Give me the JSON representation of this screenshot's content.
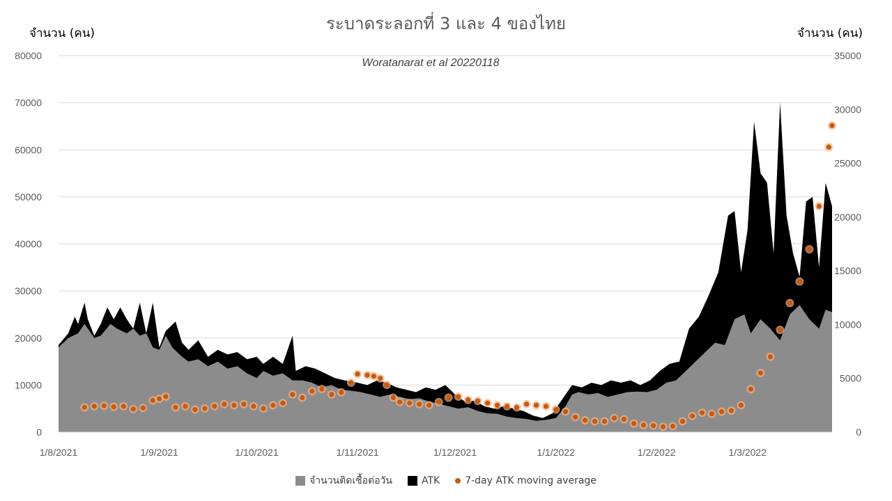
{
  "chart_data": {
    "type": "area",
    "title": "ระบาดระลอกที่ 3 และ 4 ของไทย",
    "subtitle": "Woratanarat et al 20220118",
    "ylabel_left": "จำนวน (คน)",
    "ylabel_right": "จำนวน (คน)",
    "x_tick_labels": [
      "1/8/2021",
      "1/9/2021",
      "1/10/2021",
      "1/11/2021",
      "1/12/2021",
      "1/1/2022",
      "1/2/2022",
      "1/3/2022"
    ],
    "x_range": [
      "2021-08-01",
      "2022-03-27"
    ],
    "y_left": {
      "min": 0,
      "max": 80000,
      "ticks": [
        0,
        10000,
        20000,
        30000,
        40000,
        50000,
        60000,
        70000,
        80000
      ]
    },
    "y_right": {
      "min": 0,
      "max": 35000,
      "ticks": [
        0,
        5000,
        10000,
        15000,
        20000,
        25000,
        30000,
        35000
      ]
    },
    "grid": true,
    "legend_position": "bottom",
    "colors": {
      "cases": "#8c8c8c",
      "atk": "#000000",
      "ma": "#c55a11",
      "ma_glow": "#f4b183"
    },
    "series": [
      {
        "name": "จำนวนติดเชื้อต่อวัน",
        "axis": "left",
        "points": [
          [
            "2021-08-01",
            18000
          ],
          [
            "2021-08-04",
            20000
          ],
          [
            "2021-08-07",
            21000
          ],
          [
            "2021-08-09",
            23000
          ],
          [
            "2021-08-10",
            22000
          ],
          [
            "2021-08-12",
            20000
          ],
          [
            "2021-08-14",
            20500
          ],
          [
            "2021-08-17",
            23000
          ],
          [
            "2021-08-19",
            22000
          ],
          [
            "2021-08-22",
            21000
          ],
          [
            "2021-08-24",
            22000
          ],
          [
            "2021-08-26",
            20500
          ],
          [
            "2021-08-28",
            21000
          ],
          [
            "2021-08-30",
            18000
          ],
          [
            "2021-09-01",
            17500
          ],
          [
            "2021-09-03",
            20500
          ],
          [
            "2021-09-05",
            18000
          ],
          [
            "2021-09-08",
            16000
          ],
          [
            "2021-09-10",
            15000
          ],
          [
            "2021-09-13",
            15500
          ],
          [
            "2021-09-16",
            14000
          ],
          [
            "2021-09-19",
            15000
          ],
          [
            "2021-09-22",
            13500
          ],
          [
            "2021-09-25",
            14000
          ],
          [
            "2021-09-28",
            12500
          ],
          [
            "2021-10-01",
            11500
          ],
          [
            "2021-10-03",
            13000
          ],
          [
            "2021-10-06",
            12000
          ],
          [
            "2021-10-09",
            12500
          ],
          [
            "2021-10-12",
            11000
          ],
          [
            "2021-10-15",
            11000
          ],
          [
            "2021-10-18",
            10500
          ],
          [
            "2021-10-21",
            9500
          ],
          [
            "2021-10-24",
            10000
          ],
          [
            "2021-10-27",
            9000
          ],
          [
            "2021-10-30",
            8800
          ],
          [
            "2021-11-02",
            8500
          ],
          [
            "2021-11-05",
            8000
          ],
          [
            "2021-11-08",
            7500
          ],
          [
            "2021-11-11",
            8000
          ],
          [
            "2021-11-14",
            7500
          ],
          [
            "2021-11-17",
            7000
          ],
          [
            "2021-11-20",
            7200
          ],
          [
            "2021-11-23",
            6500
          ],
          [
            "2021-11-26",
            6000
          ],
          [
            "2021-11-29",
            5500
          ],
          [
            "2021-12-02",
            5000
          ],
          [
            "2021-12-05",
            5300
          ],
          [
            "2021-12-08",
            4500
          ],
          [
            "2021-12-11",
            4000
          ],
          [
            "2021-12-14",
            3900
          ],
          [
            "2021-12-17",
            3300
          ],
          [
            "2021-12-20",
            3000
          ],
          [
            "2021-12-23",
            2800
          ],
          [
            "2021-12-26",
            2400
          ],
          [
            "2021-12-29",
            2600
          ],
          [
            "2022-01-01",
            3000
          ],
          [
            "2022-01-04",
            5500
          ],
          [
            "2022-01-06",
            8000
          ],
          [
            "2022-01-08",
            8500
          ],
          [
            "2022-01-11",
            8000
          ],
          [
            "2022-01-14",
            8300
          ],
          [
            "2022-01-17",
            7500
          ],
          [
            "2022-01-20",
            8000
          ],
          [
            "2022-01-23",
            8500
          ],
          [
            "2022-01-26",
            8600
          ],
          [
            "2022-01-29",
            8500
          ],
          [
            "2022-02-01",
            9000
          ],
          [
            "2022-02-04",
            10500
          ],
          [
            "2022-02-07",
            11000
          ],
          [
            "2022-02-10",
            13000
          ],
          [
            "2022-02-13",
            15000
          ],
          [
            "2022-02-16",
            17000
          ],
          [
            "2022-02-19",
            19000
          ],
          [
            "2022-02-22",
            18500
          ],
          [
            "2022-02-25",
            24000
          ],
          [
            "2022-02-28",
            25000
          ],
          [
            "2022-03-02",
            21000
          ],
          [
            "2022-03-05",
            24000
          ],
          [
            "2022-03-08",
            22000
          ],
          [
            "2022-03-11",
            19500
          ],
          [
            "2022-03-14",
            25000
          ],
          [
            "2022-03-17",
            27000
          ],
          [
            "2022-03-20",
            24000
          ],
          [
            "2022-03-23",
            22000
          ],
          [
            "2022-03-25",
            26000
          ],
          [
            "2022-03-27",
            25500
          ]
        ]
      },
      {
        "name": "ATK",
        "axis": "left",
        "points": [
          [
            "2021-08-01",
            18500
          ],
          [
            "2021-08-04",
            21000
          ],
          [
            "2021-08-06",
            24500
          ],
          [
            "2021-08-07",
            23000
          ],
          [
            "2021-08-09",
            27500
          ],
          [
            "2021-08-10",
            24000
          ],
          [
            "2021-08-12",
            20500
          ],
          [
            "2021-08-14",
            23000
          ],
          [
            "2021-08-16",
            26500
          ],
          [
            "2021-08-18",
            24000
          ],
          [
            "2021-08-20",
            26500
          ],
          [
            "2021-08-22",
            24000
          ],
          [
            "2021-08-24",
            22000
          ],
          [
            "2021-08-26",
            27500
          ],
          [
            "2021-08-28",
            21000
          ],
          [
            "2021-08-30",
            27500
          ],
          [
            "2021-09-01",
            18000
          ],
          [
            "2021-09-03",
            21500
          ],
          [
            "2021-09-06",
            23500
          ],
          [
            "2021-09-08",
            19000
          ],
          [
            "2021-09-10",
            17500
          ],
          [
            "2021-09-13",
            19500
          ],
          [
            "2021-09-16",
            16000
          ],
          [
            "2021-09-19",
            17500
          ],
          [
            "2021-09-22",
            16500
          ],
          [
            "2021-09-25",
            17000
          ],
          [
            "2021-09-28",
            15500
          ],
          [
            "2021-10-01",
            16000
          ],
          [
            "2021-10-03",
            14500
          ],
          [
            "2021-10-06",
            16000
          ],
          [
            "2021-10-09",
            14500
          ],
          [
            "2021-10-12",
            20500
          ],
          [
            "2021-10-13",
            13000
          ],
          [
            "2021-10-16",
            14000
          ],
          [
            "2021-10-19",
            13500
          ],
          [
            "2021-10-22",
            12500
          ],
          [
            "2021-10-25",
            11500
          ],
          [
            "2021-10-28",
            11000
          ],
          [
            "2021-11-01",
            10500
          ],
          [
            "2021-11-04",
            10000
          ],
          [
            "2021-11-07",
            11000
          ],
          [
            "2021-11-10",
            10500
          ],
          [
            "2021-11-13",
            9500
          ],
          [
            "2021-11-16",
            9000
          ],
          [
            "2021-11-19",
            8500
          ],
          [
            "2021-11-22",
            9500
          ],
          [
            "2021-11-25",
            9000
          ],
          [
            "2021-11-28",
            10000
          ],
          [
            "2021-12-01",
            8000
          ],
          [
            "2021-12-04",
            6500
          ],
          [
            "2021-12-07",
            6700
          ],
          [
            "2021-12-10",
            5500
          ],
          [
            "2021-12-13",
            5000
          ],
          [
            "2021-12-16",
            5500
          ],
          [
            "2021-12-19",
            5000
          ],
          [
            "2021-12-22",
            4500
          ],
          [
            "2021-12-25",
            3500
          ],
          [
            "2021-12-28",
            3000
          ],
          [
            "2021-12-31",
            4000
          ],
          [
            "2022-01-03",
            7000
          ],
          [
            "2022-01-06",
            10000
          ],
          [
            "2022-01-09",
            9500
          ],
          [
            "2022-01-12",
            10500
          ],
          [
            "2022-01-15",
            10000
          ],
          [
            "2022-01-18",
            11000
          ],
          [
            "2022-01-21",
            10500
          ],
          [
            "2022-01-24",
            11000
          ],
          [
            "2022-01-27",
            10000
          ],
          [
            "2022-01-30",
            11000
          ],
          [
            "2022-02-02",
            13000
          ],
          [
            "2022-02-05",
            14500
          ],
          [
            "2022-02-08",
            15000
          ],
          [
            "2022-02-11",
            22000
          ],
          [
            "2022-02-14",
            24500
          ],
          [
            "2022-02-17",
            29000
          ],
          [
            "2022-02-20",
            34000
          ],
          [
            "2022-02-23",
            46000
          ],
          [
            "2022-02-25",
            47000
          ],
          [
            "2022-02-27",
            34000
          ],
          [
            "2022-03-01",
            43000
          ],
          [
            "2022-03-03",
            66000
          ],
          [
            "2022-03-05",
            55000
          ],
          [
            "2022-03-07",
            53000
          ],
          [
            "2022-03-09",
            38000
          ],
          [
            "2022-03-11",
            70000
          ],
          [
            "2022-03-13",
            46000
          ],
          [
            "2022-03-15",
            38000
          ],
          [
            "2022-03-17",
            33000
          ],
          [
            "2022-03-19",
            49000
          ],
          [
            "2022-03-21",
            50000
          ],
          [
            "2022-03-23",
            35000
          ],
          [
            "2022-03-25",
            53000
          ],
          [
            "2022-03-27",
            48000
          ]
        ]
      },
      {
        "name": "7-day ATK moving average",
        "axis": "right",
        "points": [
          [
            "2021-08-09",
            2300
          ],
          [
            "2021-08-12",
            2400
          ],
          [
            "2021-08-15",
            2450
          ],
          [
            "2021-08-18",
            2350
          ],
          [
            "2021-08-21",
            2400
          ],
          [
            "2021-08-24",
            2150
          ],
          [
            "2021-08-27",
            2250
          ],
          [
            "2021-08-30",
            2950
          ],
          [
            "2021-09-01",
            3100
          ],
          [
            "2021-09-03",
            3300
          ],
          [
            "2021-09-06",
            2300
          ],
          [
            "2021-09-09",
            2400
          ],
          [
            "2021-09-12",
            2100
          ],
          [
            "2021-09-15",
            2200
          ],
          [
            "2021-09-18",
            2400
          ],
          [
            "2021-09-21",
            2600
          ],
          [
            "2021-09-24",
            2500
          ],
          [
            "2021-09-27",
            2600
          ],
          [
            "2021-09-30",
            2400
          ],
          [
            "2021-10-03",
            2200
          ],
          [
            "2021-10-06",
            2500
          ],
          [
            "2021-10-09",
            2700
          ],
          [
            "2021-10-12",
            3500
          ],
          [
            "2021-10-15",
            3200
          ],
          [
            "2021-10-18",
            3800
          ],
          [
            "2021-10-21",
            4000
          ],
          [
            "2021-10-24",
            3500
          ],
          [
            "2021-10-27",
            3700
          ],
          [
            "2021-10-30",
            4600
          ],
          [
            "2021-11-01",
            5400
          ],
          [
            "2021-11-04",
            5300
          ],
          [
            "2021-11-06",
            5200
          ],
          [
            "2021-11-08",
            5000
          ],
          [
            "2021-11-10",
            4400
          ],
          [
            "2021-11-12",
            3200
          ],
          [
            "2021-11-14",
            2800
          ],
          [
            "2021-11-17",
            2700
          ],
          [
            "2021-11-20",
            2600
          ],
          [
            "2021-11-23",
            2500
          ],
          [
            "2021-11-26",
            2800
          ],
          [
            "2021-11-29",
            3200
          ],
          [
            "2021-12-02",
            3300
          ],
          [
            "2021-12-05",
            3000
          ],
          [
            "2021-12-08",
            2900
          ],
          [
            "2021-12-11",
            2700
          ],
          [
            "2021-12-14",
            2500
          ],
          [
            "2021-12-17",
            2400
          ],
          [
            "2021-12-20",
            2300
          ],
          [
            "2021-12-23",
            2600
          ],
          [
            "2021-12-26",
            2500
          ],
          [
            "2021-12-29",
            2400
          ],
          [
            "2022-01-01",
            2100
          ],
          [
            "2022-01-04",
            1900
          ],
          [
            "2022-01-07",
            1400
          ],
          [
            "2022-01-10",
            1100
          ],
          [
            "2022-01-13",
            1000
          ],
          [
            "2022-01-16",
            1000
          ],
          [
            "2022-01-19",
            1300
          ],
          [
            "2022-01-22",
            1200
          ],
          [
            "2022-01-25",
            800
          ],
          [
            "2022-01-28",
            650
          ],
          [
            "2022-01-31",
            600
          ],
          [
            "2022-02-03",
            500
          ],
          [
            "2022-02-06",
            550
          ],
          [
            "2022-02-09",
            1000
          ],
          [
            "2022-02-12",
            1500
          ],
          [
            "2022-02-15",
            1800
          ],
          [
            "2022-02-18",
            1700
          ],
          [
            "2022-02-21",
            1900
          ],
          [
            "2022-02-24",
            2000
          ],
          [
            "2022-02-27",
            2500
          ],
          [
            "2022-03-02",
            4000
          ],
          [
            "2022-03-05",
            5500
          ],
          [
            "2022-03-08",
            7000
          ],
          [
            "2022-03-11",
            9500
          ],
          [
            "2022-03-14",
            12000
          ],
          [
            "2022-03-17",
            14000
          ],
          [
            "2022-03-20",
            17000
          ],
          [
            "2022-03-23",
            21000
          ],
          [
            "2022-03-26",
            26500
          ],
          [
            "2022-03-27",
            28500
          ]
        ]
      }
    ]
  }
}
